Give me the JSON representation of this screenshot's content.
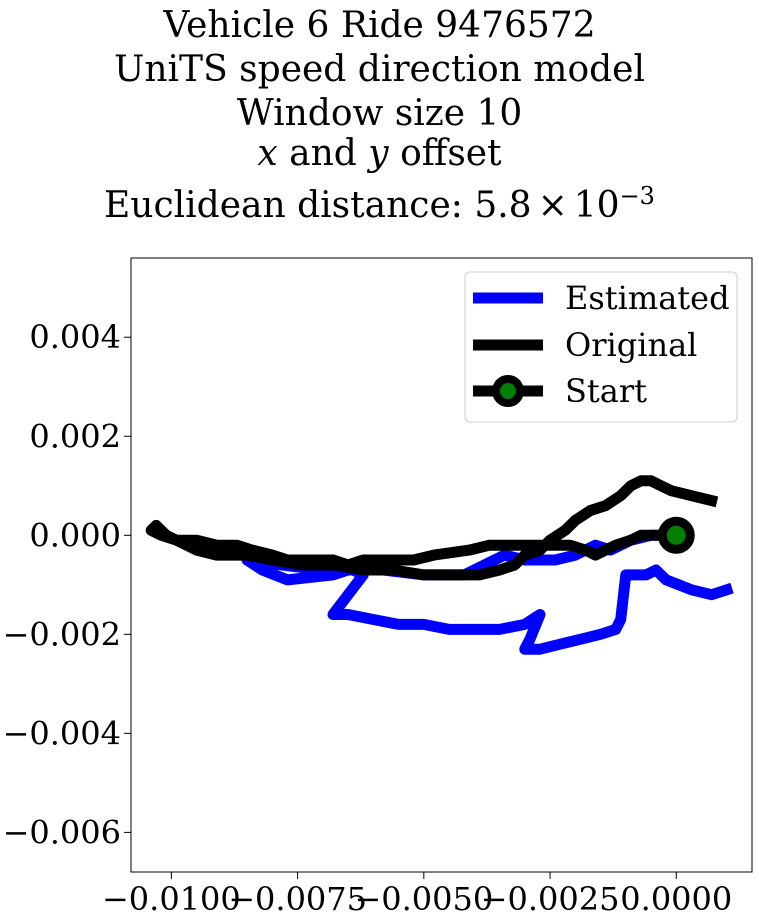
{
  "chart_data": {
    "type": "line",
    "title_lines": [
      "Vehicle 6 Ride 9476572",
      "UniTS speed direction model",
      "Window size 10",
      "x and y offset",
      "Euclidean distance: 5.8×10⁻³"
    ],
    "title_parts": {
      "line1": "Vehicle 6 Ride 9476572",
      "line2": "UniTS speed direction model",
      "line3": "Window size 10",
      "line4_x": "x",
      "line4_and": " and ",
      "line4_y": "y",
      "line4_rest": " offset",
      "line5_prefix": "Euclidean distance: 5.8",
      "line5_times": "×",
      "line5_base": "10",
      "line5_exp": "−3"
    },
    "xlim": [
      -0.0108,
      0.0015
    ],
    "ylim": [
      -0.0068,
      0.0056
    ],
    "x_ticks": [
      -0.01,
      -0.0075,
      -0.005,
      -0.0025,
      0.0
    ],
    "x_tick_labels": [
      "−0.0100",
      "−0.0075",
      "−0.0050",
      "−0.0025",
      "0.0000"
    ],
    "y_ticks": [
      0.004,
      0.002,
      0.0,
      -0.002,
      -0.004,
      -0.006
    ],
    "y_tick_labels": [
      "0.004",
      "0.002",
      "0.000",
      "−0.002",
      "−0.004",
      "−0.006"
    ],
    "legend": {
      "placement": "top-right",
      "entries": [
        "Estimated",
        "Original",
        "Start"
      ]
    },
    "colors": {
      "estimated": "#0000ff",
      "original": "#000000",
      "start_fill": "#008000",
      "start_edge": "#000000"
    },
    "series": [
      {
        "name": "Estimated",
        "points": [
          [
            0.0,
            0.0
          ],
          [
            -0.0005,
            0.0
          ],
          [
            -0.0009,
            -0.0001
          ],
          [
            -0.0013,
            -0.0003
          ],
          [
            -0.0016,
            -0.0002
          ],
          [
            -0.002,
            -0.0004
          ],
          [
            -0.0024,
            -0.0005
          ],
          [
            -0.003,
            -0.0005
          ],
          [
            -0.0034,
            -0.0004
          ],
          [
            -0.0038,
            -0.0006
          ],
          [
            -0.0042,
            -0.0008
          ],
          [
            -0.005,
            -0.0008
          ],
          [
            -0.0058,
            -0.0007
          ],
          [
            -0.0065,
            -0.0007
          ],
          [
            -0.0068,
            -0.0008
          ],
          [
            -0.0077,
            -0.0009
          ],
          [
            -0.0082,
            -0.0007
          ],
          [
            -0.0085,
            -0.0005
          ],
          [
            -0.0078,
            -0.0006
          ],
          [
            -0.007,
            -0.0007
          ],
          [
            -0.0066,
            -0.0006
          ],
          [
            -0.0062,
            -0.0008
          ],
          [
            -0.0068,
            -0.0016
          ],
          [
            -0.0065,
            -0.0016
          ],
          [
            -0.006,
            -0.0017
          ],
          [
            -0.0055,
            -0.0018
          ],
          [
            -0.005,
            -0.0018
          ],
          [
            -0.0045,
            -0.0019
          ],
          [
            -0.004,
            -0.0019
          ],
          [
            -0.0035,
            -0.0019
          ],
          [
            -0.003,
            -0.0018
          ],
          [
            -0.0027,
            -0.0016
          ],
          [
            -0.0029,
            -0.0021
          ],
          [
            -0.003,
            -0.0023
          ],
          [
            -0.0027,
            -0.0023
          ],
          [
            -0.0023,
            -0.0022
          ],
          [
            -0.0019,
            -0.0021
          ],
          [
            -0.0015,
            -0.002
          ],
          [
            -0.0012,
            -0.0019
          ],
          [
            -0.0011,
            -0.0017
          ],
          [
            -0.001,
            -0.0008
          ],
          [
            -0.0008,
            -0.0008
          ],
          [
            -0.0006,
            -0.0008
          ],
          [
            -0.0004,
            -0.0007
          ],
          [
            -0.0002,
            -0.0009
          ],
          [
            0.0003,
            -0.0011
          ],
          [
            0.0007,
            -0.0012
          ],
          [
            0.001,
            -0.0011
          ]
        ]
      },
      {
        "name": "Original",
        "points": [
          [
            0.0,
            0.0
          ],
          [
            -0.0002,
            0.0
          ],
          [
            -0.0004,
            0.0
          ],
          [
            -0.0007,
            0.0
          ],
          [
            -0.0009,
            -0.0001
          ],
          [
            -0.0012,
            -0.0002
          ],
          [
            -0.0016,
            -0.0004
          ],
          [
            -0.0018,
            -0.0003
          ],
          [
            -0.0021,
            -0.0002
          ],
          [
            -0.0026,
            -0.0002
          ],
          [
            -0.003,
            -0.0002
          ],
          [
            -0.0034,
            -0.0002
          ],
          [
            -0.0037,
            -0.0002
          ],
          [
            -0.0041,
            -0.0003
          ],
          [
            -0.0048,
            -0.0004
          ],
          [
            -0.0052,
            -0.0005
          ],
          [
            -0.0058,
            -0.0005
          ],
          [
            -0.0062,
            -0.0005
          ],
          [
            -0.0065,
            -0.0006
          ],
          [
            -0.0068,
            -0.0005
          ],
          [
            -0.0074,
            -0.0005
          ],
          [
            -0.0077,
            -0.0005
          ],
          [
            -0.008,
            -0.0004
          ],
          [
            -0.0084,
            -0.0003
          ],
          [
            -0.0087,
            -0.0002
          ],
          [
            -0.0091,
            -0.0002
          ],
          [
            -0.0095,
            -0.0001
          ],
          [
            -0.0099,
            -0.0001
          ],
          [
            -0.0102,
            0.0
          ],
          [
            -0.0104,
            0.0001
          ],
          [
            -0.0103,
            0.0002
          ],
          [
            -0.0101,
            0.0
          ],
          [
            -0.0099,
            -0.0001
          ],
          [
            -0.0095,
            -0.0003
          ],
          [
            -0.0091,
            -0.0004
          ],
          [
            -0.0085,
            -0.0004
          ],
          [
            -0.008,
            -0.0005
          ],
          [
            -0.0074,
            -0.0006
          ],
          [
            -0.0068,
            -0.0006
          ],
          [
            -0.0062,
            -0.0007
          ],
          [
            -0.0056,
            -0.0007
          ],
          [
            -0.005,
            -0.0008
          ],
          [
            -0.0044,
            -0.0008
          ],
          [
            -0.0039,
            -0.0008
          ],
          [
            -0.0035,
            -0.0007
          ],
          [
            -0.0032,
            -0.0006
          ],
          [
            -0.003,
            -0.0004
          ],
          [
            -0.0027,
            -0.0003
          ],
          [
            -0.0025,
            -0.0001
          ],
          [
            -0.0022,
            0.0001
          ],
          [
            -0.002,
            0.0003
          ],
          [
            -0.0017,
            0.0005
          ],
          [
            -0.0014,
            0.0006
          ],
          [
            -0.0011,
            0.0008
          ],
          [
            -0.0009,
            0.001
          ],
          [
            -0.0007,
            0.0011
          ],
          [
            -0.0005,
            0.0011
          ],
          [
            -0.0003,
            0.001
          ],
          [
            -0.0001,
            0.0009
          ],
          [
            0.0003,
            0.0008
          ],
          [
            0.0007,
            0.0007
          ]
        ]
      }
    ],
    "start_point": [
      0.0,
      0.0
    ]
  }
}
